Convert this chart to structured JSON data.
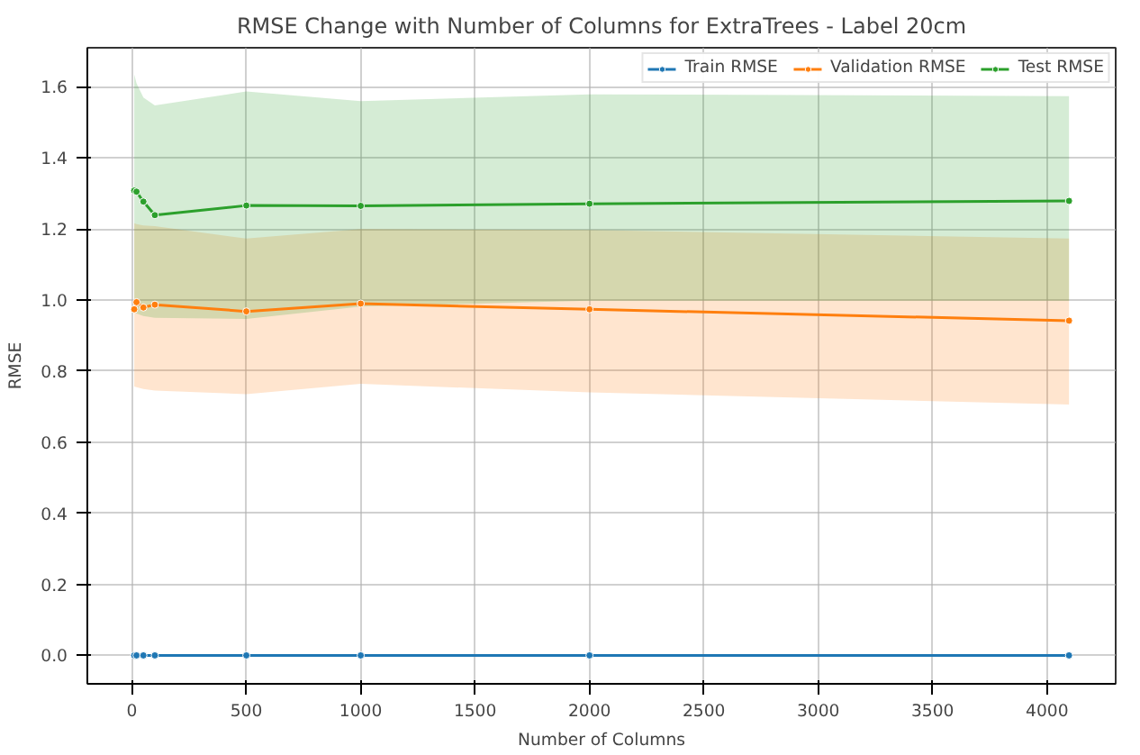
{
  "chart_data": {
    "type": "line",
    "title": "RMSE Change with Number of Columns for ExtraTrees - Label 20cm",
    "xlabel": "Number of Columns",
    "ylabel": "RMSE",
    "x": [
      10,
      20,
      50,
      100,
      500,
      1000,
      2000,
      4096
    ],
    "series": [
      {
        "name": "Train RMSE",
        "color": "#1f77b4",
        "values": [
          0.0,
          0.0,
          0.0,
          0.0,
          0.0,
          0.0,
          0.0,
          0.0
        ]
      },
      {
        "name": "Validation RMSE",
        "color": "#ff7f0e",
        "values": [
          0.974,
          0.994,
          0.979,
          0.987,
          0.968,
          0.99,
          0.974,
          0.942
        ],
        "lower": [
          0.757,
          0.755,
          0.75,
          0.745,
          0.735,
          0.764,
          0.74,
          0.706
        ],
        "upper": [
          1.216,
          1.214,
          1.21,
          1.208,
          1.173,
          1.2,
          1.197,
          1.173
        ]
      },
      {
        "name": "Test RMSE",
        "color": "#2ca02c",
        "values": [
          1.308,
          1.305,
          1.277,
          1.239,
          1.266,
          1.265,
          1.271,
          1.279
        ],
        "lower": [
          0.966,
          0.962,
          0.955,
          0.95,
          0.947,
          0.982,
          0.998,
          0.998
        ],
        "upper": [
          1.635,
          1.61,
          1.57,
          1.548,
          1.587,
          1.56,
          1.579,
          1.574
        ]
      }
    ],
    "xlim": [
      -195,
      4300
    ],
    "ylim": [
      -0.08,
      1.71
    ],
    "xticks": [
      0,
      500,
      1000,
      1500,
      2000,
      2500,
      3000,
      3500,
      4000
    ],
    "yticks": [
      {
        "value": 0,
        "label": "0.0"
      },
      {
        "value": 0.2,
        "label": "0.2"
      },
      {
        "value": 0.4,
        "label": "0.4"
      },
      {
        "value": 0.6,
        "label": "0.6"
      },
      {
        "value": 0.8,
        "label": "0.8"
      },
      {
        "value": 1.0,
        "label": "1.0"
      },
      {
        "value": 1.2,
        "label": "1.2"
      },
      {
        "value": 1.4,
        "label": "1.4"
      },
      {
        "value": 1.6,
        "label": "1.6"
      }
    ],
    "grid": true,
    "legend": "top right",
    "marker": "circle",
    "line_style": "solid"
  }
}
